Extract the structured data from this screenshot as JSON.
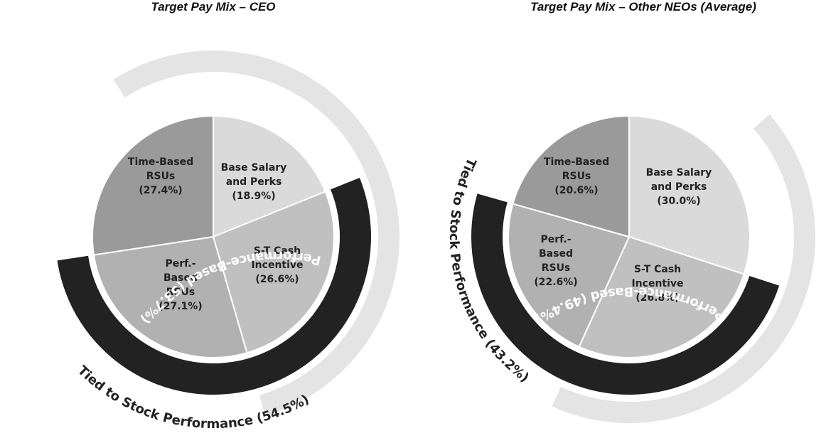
{
  "chart_data": [
    {
      "type": "pie",
      "title": "Target Pay Mix – CEO",
      "slices": [
        {
          "name": "Base Salary and Perks",
          "value": 18.9,
          "label_lines": [
            "Base Salary",
            "and Perks",
            "(18.9%)"
          ],
          "color": "#dadada"
        },
        {
          "name": "S-T Cash Incentive",
          "value": 26.6,
          "label_lines": [
            "S-T Cash",
            "Incentive",
            "(26.6%)"
          ],
          "color": "#c0c0c0"
        },
        {
          "name": "Perf.-Based RSUs",
          "value": 27.1,
          "label_lines": [
            "Perf.-",
            "Based",
            "RSUs",
            "(27.1%)"
          ],
          "color": "#b1b1b1"
        },
        {
          "name": "Time-Based RSUs",
          "value": 27.4,
          "label_lines": [
            "Time-Based",
            "RSUs",
            "(27.4%)"
          ],
          "color": "#9a9a9a"
        }
      ],
      "bands": [
        {
          "label": "Performance-Based (53.7%)",
          "value": 53.7,
          "color": "#222222"
        },
        {
          "label": "Tied to Stock Performance (54.5%)",
          "value": 54.5,
          "color": "#e4e4e4"
        }
      ]
    },
    {
      "type": "pie",
      "title": "Target Pay Mix – Other NEOs (Average)",
      "slices": [
        {
          "name": "Base Salary and Perks",
          "value": 30.0,
          "label_lines": [
            "Base Salary",
            "and Perks",
            "(30.0%)"
          ],
          "color": "#dadada"
        },
        {
          "name": "S-T Cash Incentive",
          "value": 26.8,
          "label_lines": [
            "S-T Cash",
            "Incentive",
            "(26.8%)"
          ],
          "color": "#c0c0c0"
        },
        {
          "name": "Perf.-Based RSUs",
          "value": 22.6,
          "label_lines": [
            "Perf.-",
            "Based",
            "RSUs",
            "(22.6%)"
          ],
          "color": "#b1b1b1"
        },
        {
          "name": "Time-Based RSUs",
          "value": 20.6,
          "label_lines": [
            "Time-Based",
            "RSUs",
            "(20.6%)"
          ],
          "color": "#9a9a9a"
        }
      ],
      "bands": [
        {
          "label": "Performance-Based (49.4%)",
          "value": 49.4,
          "color": "#222222"
        },
        {
          "label": "Tied to Stock Performance (43.2%)",
          "value": 43.2,
          "color": "#e4e4e4"
        }
      ]
    }
  ]
}
